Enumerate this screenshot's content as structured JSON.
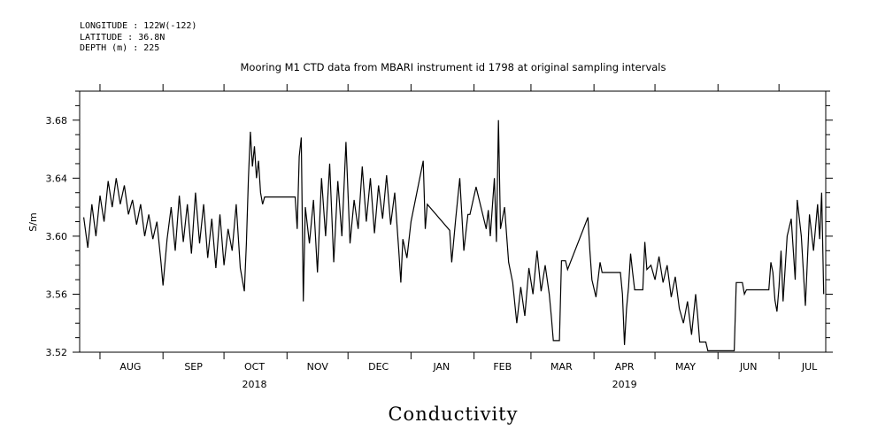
{
  "header": {
    "longitude": "LONGITUDE : 122W(-122)",
    "latitude": "LATITUDE : 36.8N",
    "depth": "DEPTH (m) : 225"
  },
  "chart_data": {
    "type": "line",
    "title": "Mooring M1 CTD data from MBARI instrument id 1798 at original sampling intervals",
    "caption": "Conductivity",
    "ylabel": "S/m",
    "xlabel": "",
    "ylim": [
      3.52,
      3.7
    ],
    "xlim": [
      "2018-07-22",
      "2019-07-24"
    ],
    "grid": false,
    "y_ticks": [
      {
        "value": 3.52,
        "label": "3.52"
      },
      {
        "value": 3.56,
        "label": "3.56"
      },
      {
        "value": 3.6,
        "label": "3.60"
      },
      {
        "value": 3.64,
        "label": "3.64"
      },
      {
        "value": 3.68,
        "label": "3.68"
      }
    ],
    "month_boundaries": [
      "2018-08-01",
      "2018-09-01",
      "2018-10-01",
      "2018-11-01",
      "2018-12-01",
      "2019-01-01",
      "2019-02-01",
      "2019-03-01",
      "2019-04-01",
      "2019-05-01",
      "2019-06-01",
      "2019-07-01"
    ],
    "month_labels": [
      {
        "label": "AUG",
        "date": "2018-08-16"
      },
      {
        "label": "SEP",
        "date": "2018-09-16"
      },
      {
        "label": "OCT",
        "date": "2018-10-16"
      },
      {
        "label": "NOV",
        "date": "2018-11-16"
      },
      {
        "label": "DEC",
        "date": "2018-12-16"
      },
      {
        "label": "JAN",
        "date": "2019-01-16"
      },
      {
        "label": "FEB",
        "date": "2019-02-15"
      },
      {
        "label": "MAR",
        "date": "2019-03-16"
      },
      {
        "label": "APR",
        "date": "2019-04-16"
      },
      {
        "label": "MAY",
        "date": "2019-05-16"
      },
      {
        "label": "JUN",
        "date": "2019-06-16"
      },
      {
        "label": "JUL",
        "date": "2019-07-16"
      }
    ],
    "year_labels": [
      {
        "label": "2018",
        "date": "2018-10-16"
      },
      {
        "label": "2019",
        "date": "2019-04-16"
      }
    ],
    "series": [
      {
        "points": [
          [
            "2018-07-24",
            3.613
          ],
          [
            "2018-07-26",
            3.592
          ],
          [
            "2018-07-28",
            3.622
          ],
          [
            "2018-07-30",
            3.6
          ],
          [
            "2018-08-01",
            3.628
          ],
          [
            "2018-08-03",
            3.61
          ],
          [
            "2018-08-05",
            3.638
          ],
          [
            "2018-08-07",
            3.62
          ],
          [
            "2018-08-09",
            3.64
          ],
          [
            "2018-08-11",
            3.622
          ],
          [
            "2018-08-13",
            3.635
          ],
          [
            "2018-08-15",
            3.615
          ],
          [
            "2018-08-17",
            3.625
          ],
          [
            "2018-08-19",
            3.608
          ],
          [
            "2018-08-21",
            3.622
          ],
          [
            "2018-08-23",
            3.6
          ],
          [
            "2018-08-25",
            3.615
          ],
          [
            "2018-08-27",
            3.598
          ],
          [
            "2018-08-29",
            3.61
          ],
          [
            "2018-08-31",
            3.582
          ],
          [
            "2018-09-01",
            3.566
          ],
          [
            "2018-09-03",
            3.598
          ],
          [
            "2018-09-05",
            3.62
          ],
          [
            "2018-09-07",
            3.59
          ],
          [
            "2018-09-09",
            3.628
          ],
          [
            "2018-09-11",
            3.596
          ],
          [
            "2018-09-13",
            3.622
          ],
          [
            "2018-09-15",
            3.588
          ],
          [
            "2018-09-17",
            3.63
          ],
          [
            "2018-09-19",
            3.595
          ],
          [
            "2018-09-21",
            3.622
          ],
          [
            "2018-09-23",
            3.585
          ],
          [
            "2018-09-25",
            3.612
          ],
          [
            "2018-09-27",
            3.578
          ],
          [
            "2018-09-29",
            3.615
          ],
          [
            "2018-10-01",
            3.58
          ],
          [
            "2018-10-03",
            3.605
          ],
          [
            "2018-10-05",
            3.59
          ],
          [
            "2018-10-07",
            3.622
          ],
          [
            "2018-10-09",
            3.578
          ],
          [
            "2018-10-11",
            3.562
          ],
          [
            "2018-10-12",
            3.595
          ],
          [
            "2018-10-13",
            3.64
          ],
          [
            "2018-10-14",
            3.672
          ],
          [
            "2018-10-15",
            3.648
          ],
          [
            "2018-10-16",
            3.662
          ],
          [
            "2018-10-17",
            3.64
          ],
          [
            "2018-10-18",
            3.652
          ],
          [
            "2018-10-19",
            3.63
          ],
          [
            "2018-10-20",
            3.622
          ],
          [
            "2018-10-21",
            3.627
          ],
          [
            "2018-11-05",
            3.627
          ],
          [
            "2018-11-06",
            3.605
          ],
          [
            "2018-11-07",
            3.655
          ],
          [
            "2018-11-08",
            3.668
          ],
          [
            "2018-11-09",
            3.555
          ],
          [
            "2018-11-10",
            3.62
          ],
          [
            "2018-11-12",
            3.595
          ],
          [
            "2018-11-14",
            3.625
          ],
          [
            "2018-11-16",
            3.575
          ],
          [
            "2018-11-18",
            3.64
          ],
          [
            "2018-11-20",
            3.6
          ],
          [
            "2018-11-22",
            3.65
          ],
          [
            "2018-11-24",
            3.582
          ],
          [
            "2018-11-26",
            3.638
          ],
          [
            "2018-11-28",
            3.6
          ],
          [
            "2018-11-30",
            3.665
          ],
          [
            "2018-12-02",
            3.595
          ],
          [
            "2018-12-04",
            3.625
          ],
          [
            "2018-12-06",
            3.605
          ],
          [
            "2018-12-08",
            3.648
          ],
          [
            "2018-12-10",
            3.61
          ],
          [
            "2018-12-12",
            3.64
          ],
          [
            "2018-12-14",
            3.602
          ],
          [
            "2018-12-16",
            3.635
          ],
          [
            "2018-12-18",
            3.612
          ],
          [
            "2018-12-20",
            3.642
          ],
          [
            "2018-12-22",
            3.608
          ],
          [
            "2018-12-24",
            3.63
          ],
          [
            "2018-12-26",
            3.59
          ],
          [
            "2018-12-27",
            3.568
          ],
          [
            "2018-12-28",
            3.598
          ],
          [
            "2018-12-30",
            3.585
          ],
          [
            "2019-01-01",
            3.61
          ],
          [
            "2019-01-07",
            3.652
          ],
          [
            "2019-01-08",
            3.605
          ],
          [
            "2019-01-09",
            3.622
          ],
          [
            "2019-01-20",
            3.604
          ],
          [
            "2019-01-21",
            3.582
          ],
          [
            "2019-01-23",
            3.612
          ],
          [
            "2019-01-25",
            3.64
          ],
          [
            "2019-01-27",
            3.59
          ],
          [
            "2019-01-29",
            3.615
          ],
          [
            "2019-01-30",
            3.615
          ],
          [
            "2019-02-02",
            3.634
          ],
          [
            "2019-02-07",
            3.605
          ],
          [
            "2019-02-08",
            3.618
          ],
          [
            "2019-02-09",
            3.6
          ],
          [
            "2019-02-11",
            3.64
          ],
          [
            "2019-02-12",
            3.596
          ],
          [
            "2019-02-13",
            3.68
          ],
          [
            "2019-02-14",
            3.605
          ],
          [
            "2019-02-16",
            3.62
          ],
          [
            "2019-02-18",
            3.582
          ],
          [
            "2019-02-20",
            3.568
          ],
          [
            "2019-02-22",
            3.54
          ],
          [
            "2019-02-24",
            3.565
          ],
          [
            "2019-02-26",
            3.545
          ],
          [
            "2019-02-28",
            3.578
          ],
          [
            "2019-03-02",
            3.56
          ],
          [
            "2019-03-04",
            3.59
          ],
          [
            "2019-03-06",
            3.562
          ],
          [
            "2019-03-08",
            3.58
          ],
          [
            "2019-03-10",
            3.56
          ],
          [
            "2019-03-11",
            3.545
          ],
          [
            "2019-03-12",
            3.528
          ],
          [
            "2019-03-15",
            3.528
          ],
          [
            "2019-03-16",
            3.583
          ],
          [
            "2019-03-18",
            3.583
          ],
          [
            "2019-03-19",
            3.577
          ],
          [
            "2019-03-29",
            3.613
          ],
          [
            "2019-03-30",
            3.59
          ],
          [
            "2019-03-31",
            3.57
          ],
          [
            "2019-04-02",
            3.558
          ],
          [
            "2019-04-04",
            3.582
          ],
          [
            "2019-04-05",
            3.575
          ],
          [
            "2019-04-14",
            3.575
          ],
          [
            "2019-04-15",
            3.56
          ],
          [
            "2019-04-16",
            3.525
          ],
          [
            "2019-04-17",
            3.55
          ],
          [
            "2019-04-18",
            3.565
          ],
          [
            "2019-04-19",
            3.588
          ],
          [
            "2019-04-20",
            3.575
          ],
          [
            "2019-04-21",
            3.563
          ],
          [
            "2019-04-25",
            3.563
          ],
          [
            "2019-04-26",
            3.596
          ],
          [
            "2019-04-27",
            3.577
          ],
          [
            "2019-04-29",
            3.58
          ],
          [
            "2019-05-01",
            3.57
          ],
          [
            "2019-05-03",
            3.586
          ],
          [
            "2019-05-05",
            3.568
          ],
          [
            "2019-05-07",
            3.58
          ],
          [
            "2019-05-09",
            3.558
          ],
          [
            "2019-05-11",
            3.572
          ],
          [
            "2019-05-13",
            3.55
          ],
          [
            "2019-05-15",
            3.54
          ],
          [
            "2019-05-17",
            3.555
          ],
          [
            "2019-05-19",
            3.532
          ],
          [
            "2019-05-21",
            3.56
          ],
          [
            "2019-05-22",
            3.545
          ],
          [
            "2019-05-23",
            3.527
          ],
          [
            "2019-05-26",
            3.527
          ],
          [
            "2019-05-27",
            3.521
          ],
          [
            "2019-06-09",
            3.521
          ],
          [
            "2019-06-10",
            3.568
          ],
          [
            "2019-06-13",
            3.568
          ],
          [
            "2019-06-14",
            3.56
          ],
          [
            "2019-06-15",
            3.563
          ],
          [
            "2019-06-26",
            3.563
          ],
          [
            "2019-06-27",
            3.582
          ],
          [
            "2019-06-28",
            3.575
          ],
          [
            "2019-06-29",
            3.556
          ],
          [
            "2019-06-30",
            3.548
          ],
          [
            "2019-07-01",
            3.565
          ],
          [
            "2019-07-02",
            3.59
          ],
          [
            "2019-07-03",
            3.555
          ],
          [
            "2019-07-05",
            3.6
          ],
          [
            "2019-07-07",
            3.612
          ],
          [
            "2019-07-09",
            3.57
          ],
          [
            "2019-07-10",
            3.625
          ],
          [
            "2019-07-12",
            3.6
          ],
          [
            "2019-07-14",
            3.552
          ],
          [
            "2019-07-16",
            3.615
          ],
          [
            "2019-07-18",
            3.59
          ],
          [
            "2019-07-20",
            3.622
          ],
          [
            "2019-07-21",
            3.598
          ],
          [
            "2019-07-22",
            3.63
          ],
          [
            "2019-07-23",
            3.56
          ]
        ]
      }
    ]
  }
}
